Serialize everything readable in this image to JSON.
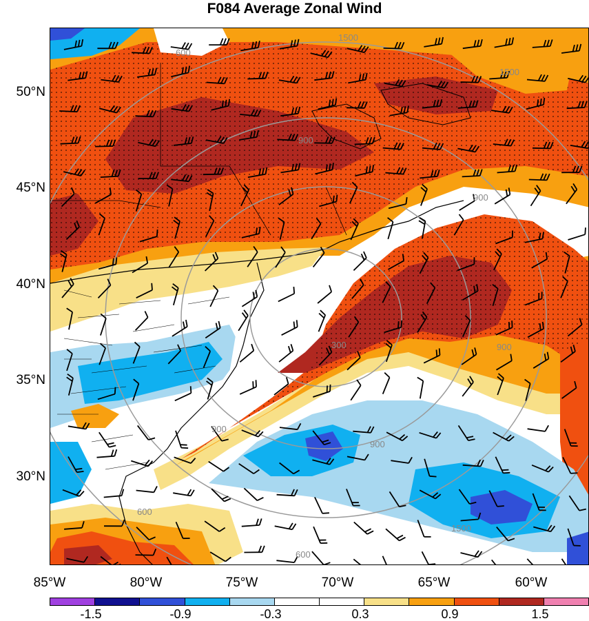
{
  "title": "F084 Average Zonal Wind",
  "axes": {
    "lat_labels": [
      "50°N",
      "45°N",
      "40°N",
      "35°N",
      "30°N"
    ],
    "lon_labels": [
      "85°W",
      "80°W",
      "75°W",
      "70°W",
      "65°W",
      "60°W"
    ]
  },
  "contour_labels": [
    "1500",
    "600",
    "1500",
    "900",
    "900",
    "300",
    "900",
    "900",
    "900",
    "600",
    "1500",
    "600",
    "1500"
  ],
  "colorbar": {
    "colors": [
      "#a040e0",
      "#101090",
      "#3050d8",
      "#10b0f0",
      "#a8d8f0",
      "#ffffff",
      "#ffffff",
      "#f8e088",
      "#f8a010",
      "#f05010",
      "#b02820",
      "#f080b0"
    ],
    "labels": [
      "-1.5",
      "-0.9",
      "-0.3",
      "0.3",
      "0.9",
      "1.5"
    ]
  },
  "colors": {
    "strong_positive": "#b02820",
    "positive": "#f05010",
    "mild_positive": "#f8a010",
    "weak_positive": "#f8e088",
    "neutral": "#ffffff",
    "weak_negative": "#a8d8f0",
    "negative": "#10b0f0",
    "strong_negative": "#3050d8"
  }
}
